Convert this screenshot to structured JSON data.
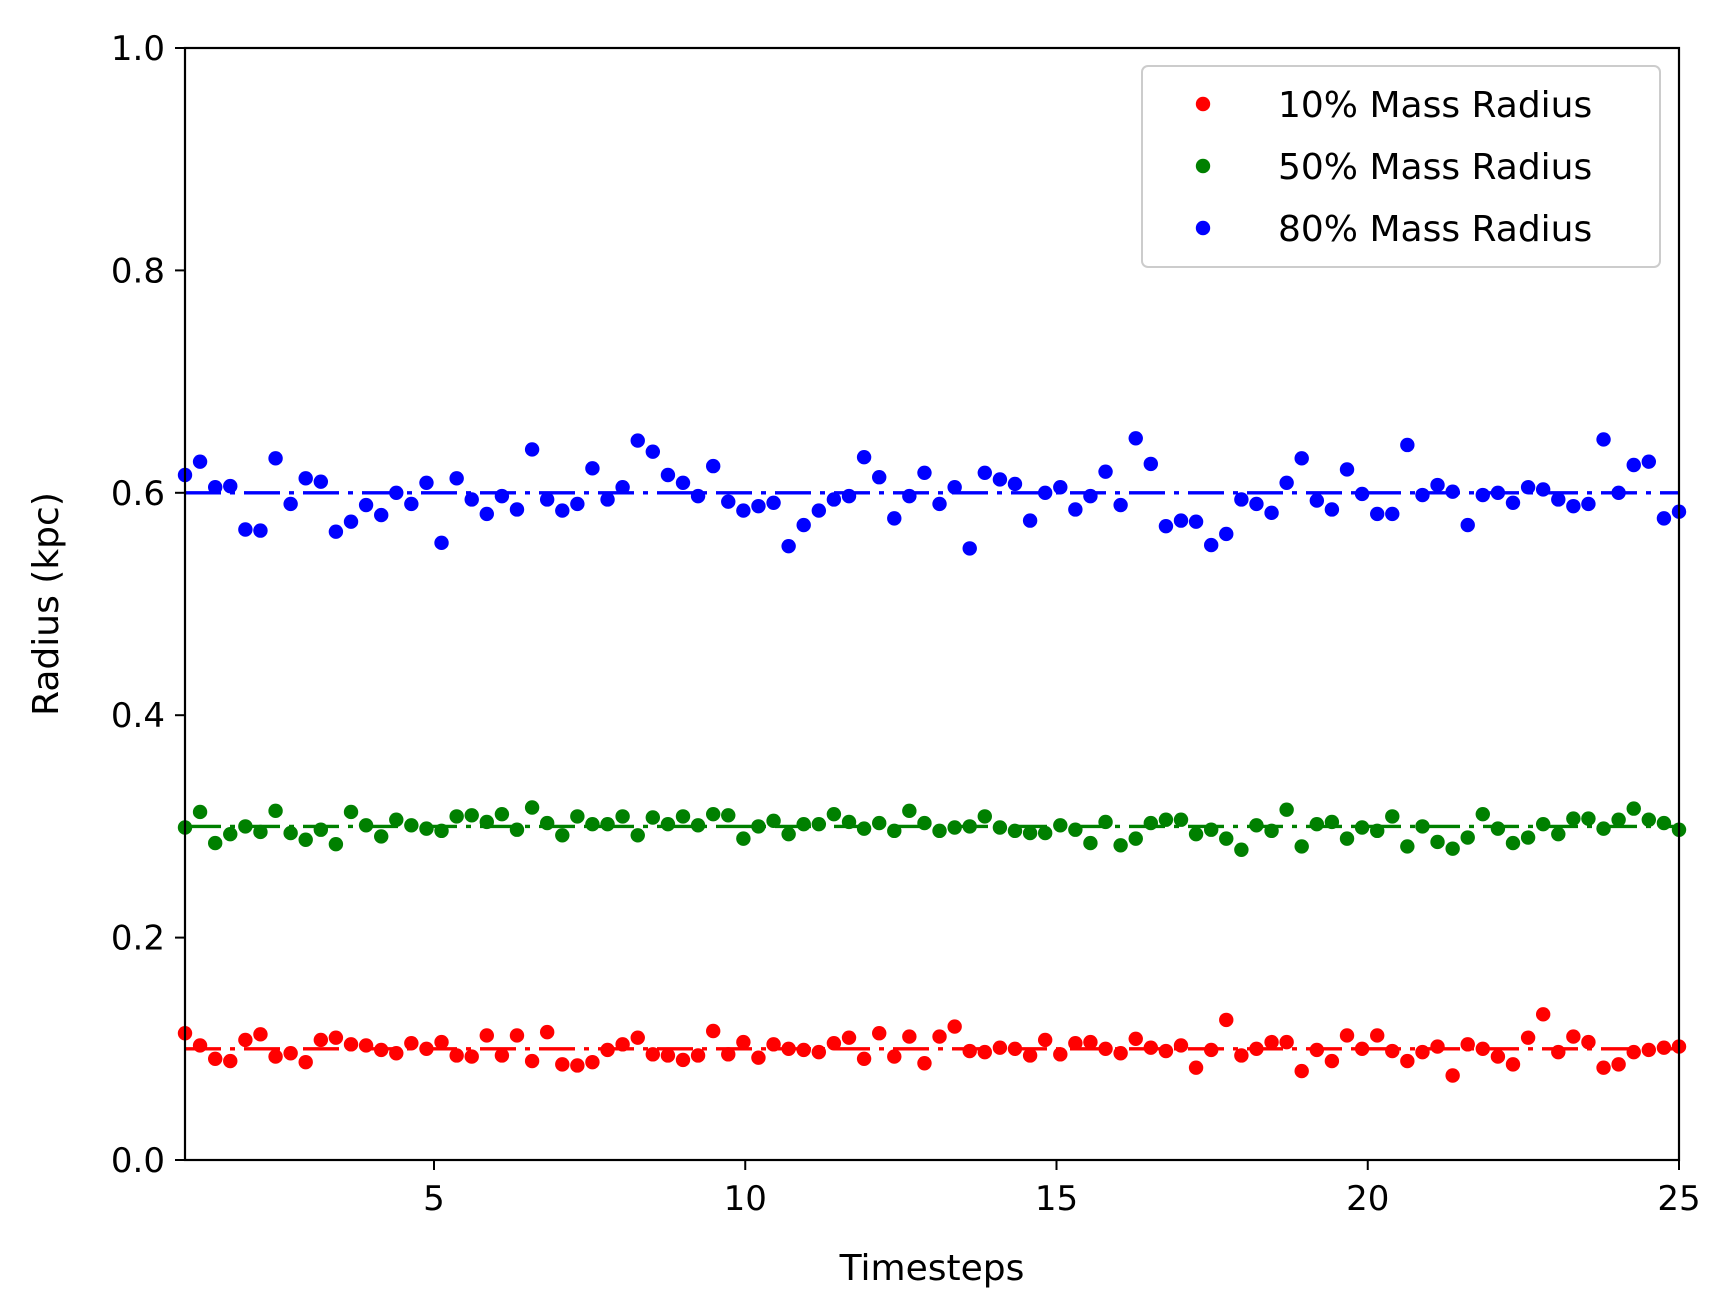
{
  "chart_data": {
    "type": "scatter",
    "xlabel": "Timesteps",
    "ylabel": "Radius (kpc)",
    "xlim": [
      1,
      25
    ],
    "ylim": [
      0.0,
      1.0
    ],
    "x_ticks": [
      "5",
      "10",
      "15",
      "20",
      "25"
    ],
    "y_ticks": [
      "0.0",
      "0.2",
      "0.4",
      "0.6",
      "0.8",
      "1.0"
    ],
    "grid": false,
    "legend_position": "top-right",
    "x": [
      1.0,
      1.242,
      1.485,
      1.727,
      1.97,
      2.212,
      2.455,
      2.697,
      2.939,
      3.182,
      3.424,
      3.667,
      3.909,
      4.152,
      4.394,
      4.636,
      4.879,
      5.121,
      5.364,
      5.606,
      5.848,
      6.091,
      6.333,
      6.576,
      6.818,
      7.061,
      7.303,
      7.545,
      7.788,
      8.03,
      8.273,
      8.515,
      8.758,
      9.0,
      9.242,
      9.485,
      9.727,
      9.97,
      10.212,
      10.455,
      10.697,
      10.939,
      11.182,
      11.424,
      11.667,
      11.909,
      12.152,
      12.394,
      12.636,
      12.879,
      13.121,
      13.364,
      13.606,
      13.848,
      14.091,
      14.333,
      14.576,
      14.818,
      15.061,
      15.303,
      15.545,
      15.788,
      16.03,
      16.273,
      16.515,
      16.758,
      17.0,
      17.242,
      17.485,
      17.727,
      17.97,
      18.212,
      18.455,
      18.697,
      18.939,
      19.182,
      19.424,
      19.667,
      19.909,
      20.152,
      20.394,
      20.636,
      20.879,
      21.121,
      21.364,
      21.606,
      21.848,
      22.091,
      22.333,
      22.576,
      22.818,
      23.061,
      23.303,
      23.545,
      23.788,
      24.03,
      24.273,
      24.515,
      24.758,
      25.0
    ],
    "series": [
      {
        "name": "10% Mass Radius",
        "color": "#ff0000",
        "mean_line": 0.1,
        "values": [
          0.114,
          0.103,
          0.091,
          0.089,
          0.108,
          0.113,
          0.093,
          0.096,
          0.088,
          0.108,
          0.11,
          0.104,
          0.103,
          0.099,
          0.096,
          0.105,
          0.1,
          0.106,
          0.094,
          0.093,
          0.112,
          0.094,
          0.112,
          0.089,
          0.115,
          0.086,
          0.085,
          0.088,
          0.099,
          0.104,
          0.11,
          0.095,
          0.094,
          0.09,
          0.094,
          0.116,
          0.095,
          0.106,
          0.092,
          0.104,
          0.1,
          0.099,
          0.097,
          0.105,
          0.11,
          0.091,
          0.114,
          0.093,
          0.111,
          0.087,
          0.111,
          0.12,
          0.098,
          0.097,
          0.101,
          0.1,
          0.094,
          0.108,
          0.095,
          0.105,
          0.106,
          0.1,
          0.096,
          0.109,
          0.101,
          0.098,
          0.103,
          0.083,
          0.099,
          0.126,
          0.094,
          0.1,
          0.106,
          0.106,
          0.08,
          0.099,
          0.089,
          0.112,
          0.1,
          0.112,
          0.098,
          0.089,
          0.097,
          0.102,
          0.076,
          0.104,
          0.1,
          0.093,
          0.086,
          0.11,
          0.131,
          0.097,
          0.111,
          0.106,
          0.083,
          0.086,
          0.097,
          0.099,
          0.101,
          0.102
        ]
      },
      {
        "name": "50% Mass Radius",
        "color": "#008000",
        "mean_line": 0.3,
        "values": [
          0.299,
          0.313,
          0.285,
          0.293,
          0.3,
          0.295,
          0.314,
          0.294,
          0.288,
          0.297,
          0.284,
          0.313,
          0.301,
          0.291,
          0.306,
          0.301,
          0.298,
          0.296,
          0.309,
          0.31,
          0.304,
          0.311,
          0.297,
          0.317,
          0.303,
          0.292,
          0.309,
          0.302,
          0.302,
          0.309,
          0.292,
          0.308,
          0.302,
          0.309,
          0.301,
          0.311,
          0.31,
          0.289,
          0.3,
          0.305,
          0.293,
          0.302,
          0.302,
          0.311,
          0.304,
          0.298,
          0.303,
          0.296,
          0.314,
          0.303,
          0.296,
          0.299,
          0.3,
          0.309,
          0.299,
          0.296,
          0.294,
          0.294,
          0.301,
          0.297,
          0.285,
          0.304,
          0.283,
          0.289,
          0.303,
          0.306,
          0.306,
          0.293,
          0.297,
          0.289,
          0.279,
          0.301,
          0.296,
          0.315,
          0.282,
          0.302,
          0.304,
          0.289,
          0.299,
          0.296,
          0.309,
          0.282,
          0.3,
          0.286,
          0.28,
          0.29,
          0.311,
          0.298,
          0.285,
          0.29,
          0.302,
          0.293,
          0.307,
          0.307,
          0.298,
          0.306,
          0.316,
          0.306,
          0.303,
          0.297
        ]
      },
      {
        "name": "80% Mass Radius",
        "color": "#0000ff",
        "mean_line": 0.6,
        "values": [
          0.616,
          0.628,
          0.605,
          0.606,
          0.567,
          0.566,
          0.631,
          0.59,
          0.613,
          0.61,
          0.565,
          0.574,
          0.589,
          0.58,
          0.6,
          0.59,
          0.609,
          0.555,
          0.613,
          0.594,
          0.581,
          0.597,
          0.585,
          0.639,
          0.594,
          0.584,
          0.59,
          0.622,
          0.594,
          0.605,
          0.647,
          0.637,
          0.616,
          0.609,
          0.597,
          0.624,
          0.592,
          0.584,
          0.588,
          0.591,
          0.552,
          0.571,
          0.584,
          0.594,
          0.597,
          0.632,
          0.614,
          0.577,
          0.597,
          0.618,
          0.59,
          0.605,
          0.55,
          0.618,
          0.612,
          0.608,
          0.575,
          0.6,
          0.605,
          0.585,
          0.597,
          0.619,
          0.589,
          0.649,
          0.626,
          0.57,
          0.575,
          0.574,
          0.553,
          0.563,
          0.594,
          0.59,
          0.582,
          0.609,
          0.631,
          0.593,
          0.585,
          0.621,
          0.599,
          0.581,
          0.581,
          0.643,
          0.598,
          0.607,
          0.601,
          0.571,
          0.598,
          0.6,
          0.591,
          0.605,
          0.603,
          0.594,
          0.588,
          0.59,
          0.648,
          0.6,
          0.625,
          0.628,
          0.577,
          0.583
        ]
      }
    ]
  }
}
